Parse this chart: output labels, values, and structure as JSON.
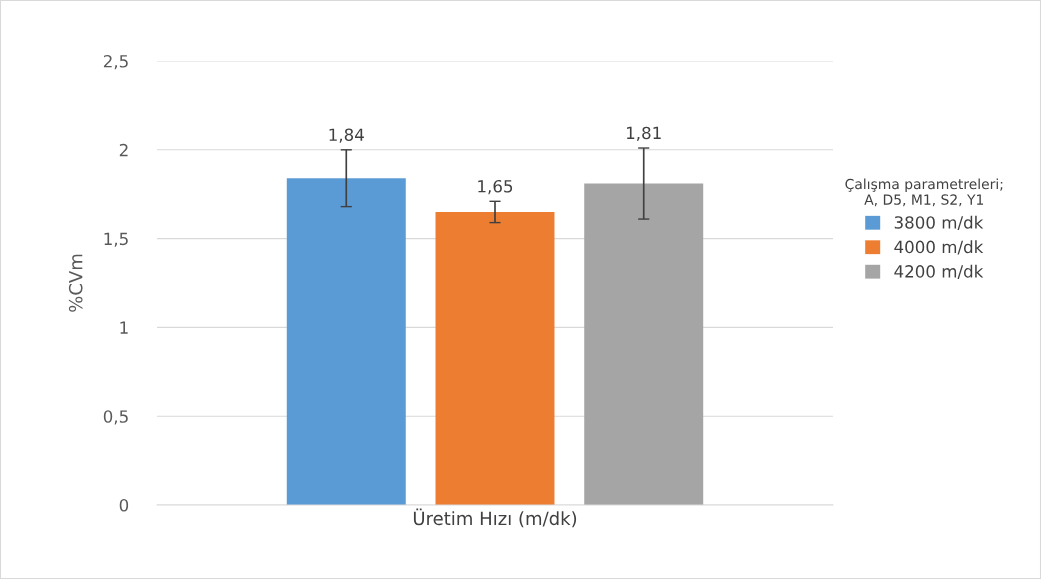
{
  "chart_data": {
    "type": "bar",
    "ylabel": "%CVm",
    "legend_title": "Çalışma parametreleri;\nA, D5, M1, S2, Y1",
    "categories": [
      "Üretim Hızı (m/dk)"
    ],
    "series": [
      {
        "name": "3800 m/dk",
        "color": "#5b9bd5",
        "values": [
          1.84
        ],
        "errors": [
          0.16
        ],
        "value_labels": [
          "1,84"
        ]
      },
      {
        "name": "4000 m/dk",
        "color": "#ed7d31",
        "values": [
          1.65
        ],
        "errors": [
          0.06
        ],
        "value_labels": [
          "1,65"
        ]
      },
      {
        "name": "4200 m/dk",
        "color": "#a5a5a5",
        "values": [
          1.81
        ],
        "errors": [
          0.2
        ],
        "value_labels": [
          "1,81"
        ]
      }
    ],
    "ylim": [
      0,
      2.5
    ],
    "yticks": [
      {
        "value": 0,
        "label": "0"
      },
      {
        "value": 0.5,
        "label": "0,5"
      },
      {
        "value": 1,
        "label": "1"
      },
      {
        "value": 1.5,
        "label": "1,5"
      },
      {
        "value": 2,
        "label": "2"
      },
      {
        "value": 2.5,
        "label": "2,5"
      }
    ],
    "grid": "y",
    "legend": "right"
  }
}
